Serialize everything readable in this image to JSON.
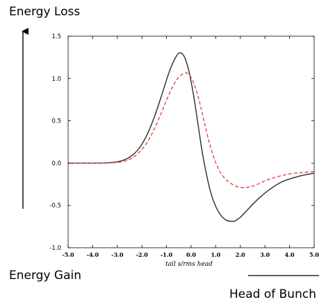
{
  "labels": {
    "energy_loss": "Energy Loss",
    "energy_gain": "Energy Gain",
    "head_of_bunch": "Head of Bunch"
  },
  "colors": {
    "solid_series": "#2b2b2b",
    "dashed_series": "#e23a3a",
    "axis": "#000000",
    "arrow": "#000000"
  },
  "chart_data": {
    "type": "line",
    "title": "",
    "xlabel": "tail s/rms head",
    "ylabel": "",
    "xlim": [
      -5.0,
      5.0
    ],
    "ylim": [
      -1.0,
      1.5
    ],
    "xticks": [
      "-5.0",
      "-4.0",
      "-3.0",
      "-2.0",
      "-1.0",
      "0.0",
      "1.0",
      "2.0",
      "3.0",
      "4.0",
      "5.0"
    ],
    "yticks": [
      "-1.0",
      "-0.5",
      "0.0",
      "0.5",
      "1.0",
      "1.5"
    ],
    "grid": false,
    "legend": "none",
    "series": [
      {
        "style": "solid",
        "x": [
          -5.0,
          -4.0,
          -3.5,
          -3.0,
          -2.7,
          -2.4,
          -2.1,
          -1.8,
          -1.5,
          -1.2,
          -0.9,
          -0.7,
          -0.5,
          -0.3,
          -0.1,
          0.1,
          0.3,
          0.5,
          0.8,
          1.1,
          1.4,
          1.7,
          1.8,
          2.0,
          2.3,
          2.7,
          3.2,
          3.7,
          4.2,
          4.6,
          5.0
        ],
        "y": [
          0.0,
          0.0,
          0.002,
          0.015,
          0.04,
          0.09,
          0.18,
          0.33,
          0.54,
          0.8,
          1.07,
          1.21,
          1.3,
          1.27,
          1.1,
          0.8,
          0.42,
          0.05,
          -0.35,
          -0.57,
          -0.67,
          -0.69,
          -0.68,
          -0.64,
          -0.55,
          -0.43,
          -0.31,
          -0.22,
          -0.17,
          -0.14,
          -0.12
        ]
      },
      {
        "style": "dashed",
        "x": [
          -5.0,
          -4.0,
          -3.5,
          -3.0,
          -2.7,
          -2.4,
          -2.1,
          -1.8,
          -1.5,
          -1.2,
          -0.9,
          -0.6,
          -0.3,
          -0.1,
          0.1,
          0.3,
          0.5,
          0.8,
          1.1,
          1.4,
          1.8,
          2.1,
          2.4,
          2.7,
          3.0,
          3.4,
          3.8,
          4.2,
          4.6,
          5.0
        ],
        "y": [
          0.0,
          0.0,
          0.001,
          0.008,
          0.025,
          0.06,
          0.13,
          0.24,
          0.4,
          0.6,
          0.81,
          0.98,
          1.06,
          1.05,
          0.95,
          0.77,
          0.53,
          0.18,
          -0.06,
          -0.19,
          -0.27,
          -0.29,
          -0.28,
          -0.25,
          -0.21,
          -0.17,
          -0.14,
          -0.12,
          -0.11,
          -0.1
        ]
      }
    ]
  }
}
